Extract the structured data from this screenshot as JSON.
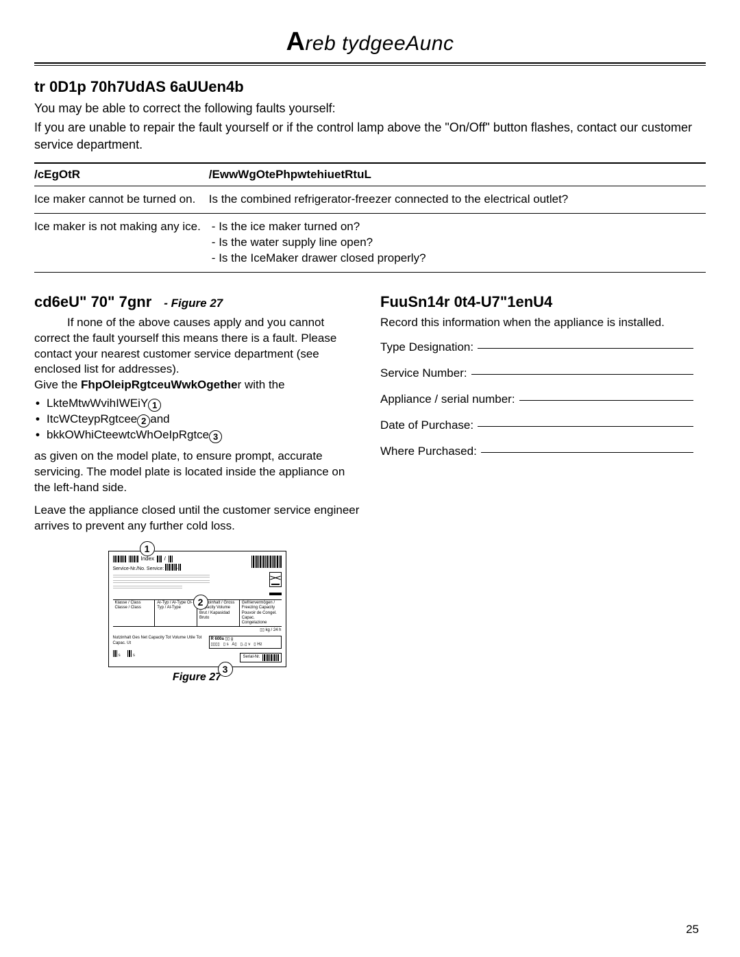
{
  "page": {
    "title_first": "A",
    "title_rest": "reb tydgeeAunc",
    "number": "25"
  },
  "troubleshoot": {
    "heading": "tr 0D1p 70h7UdAS 6aUUen4b",
    "intro1": "You may be able to correct the following faults yourself:",
    "intro2": "If you are unable to repair the fault yourself or if the control lamp above the \"On/Off\" button flashes, contact our customer service department.",
    "col_problem": "/cEgOtR",
    "col_cause": "/EwwWgOtePhpwtehiuetRtuL",
    "rows": [
      {
        "problem": "Ice maker cannot be turned on.",
        "cause_text": "Is the combined refrigerator-freezer connected to the electrical outlet?",
        "cause_list": []
      },
      {
        "problem": "Ice maker is not making any ice.",
        "cause_text": "",
        "cause_list": [
          "Is the ice maker turned on?",
          "Is the water supply line open?",
          "Is the IceMaker drawer closed properly?"
        ]
      }
    ]
  },
  "service": {
    "heading": "cd6eU\" 70\" 7gnr",
    "fig_ref": "- Figure 27",
    "para1": "If none of the above causes apply and you cannot correct the fault yourself this means there is a fault. Please contact your nearest customer service department (see enclosed list for addresses).",
    "give_prefix": "Give the ",
    "give_bold": "FhpOleipRgtceuWwkOgethe",
    "give_suffix": "r with the",
    "bullets": [
      {
        "text": "LkteMtwWvihIWEiY",
        "num": "1"
      },
      {
        "text_pre": "ItcWCteypRgtcee",
        "text_suf": "and",
        "num": "2"
      },
      {
        "text": "bkkOWhiCteewtcWhOeIpRgtce",
        "num": "3"
      }
    ],
    "para2": "as given on the model plate, to ensure prompt, accurate servicing. The model plate is located inside the appliance on the left-hand side.",
    "para3": "Leave the appliance closed until the customer service engineer arrives to prevent any further cold loss.",
    "fig_caption": "Figure 27"
  },
  "appliance_info": {
    "heading": "FuuSn14r 0t4-U7\"1enU4",
    "intro": "Record this information when the appliance is installed.",
    "fields": [
      "Type Designation:",
      "Service Number:",
      "Appliance / serial number:",
      "Date of Purchase:",
      "Where Purchased:"
    ]
  },
  "model_plate": {
    "index_label": "Index",
    "service_label": "Service-Nr./No. Service:",
    "row_labels": "Klasse / Class\nClasse / Class",
    "col2": "Al-Typ / Al-Type\nOl-Typ / Al-Type",
    "col3": "Bruttoinhalt / Gross Capacity\nVolume Brut / Kapasidad Bruto",
    "col4": "Gefriervermögen / Freezing Capacity\nPouvoir de Congel. Capac. Congelazione",
    "kg": "kg / 24 h",
    "bottom_left": "Nutzinhalt    Ges\nNet Capacity  Tot\nVolume Utile  Tot\nCapac. Ut",
    "r_label": "R 600a",
    "serial_label": "Serial-Nr."
  }
}
